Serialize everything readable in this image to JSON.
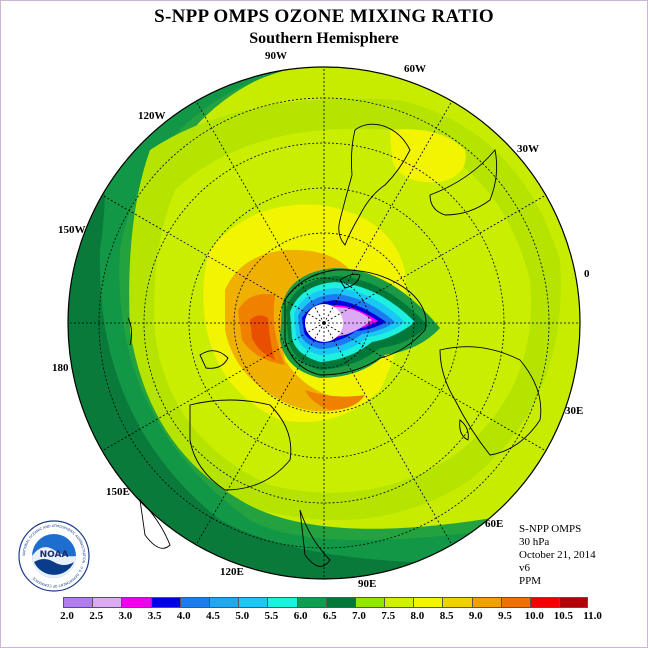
{
  "title": "S-NPP OMPS OZONE MIXING RATIO",
  "subtitle": "Southern Hemisphere",
  "longitude_labels": [
    "90W",
    "60W",
    "30W",
    "0",
    "30E",
    "60E",
    "90E",
    "120E",
    "150E",
    "180",
    "150W",
    "120W"
  ],
  "info": {
    "instrument": "S-NPP OMPS",
    "level": "30 hPa",
    "date": "October 21, 2014",
    "version": "v6",
    "units": "PPM"
  },
  "logo": {
    "text": "NOAA",
    "ring_text": "NATIONAL OCEANIC AND ATMOSPHERIC ADMINISTRATION · U.S. DEPARTMENT OF COMMERCE"
  },
  "legend": {
    "tick_labels": [
      "2.0",
      "2.5",
      "3.0",
      "3.5",
      "4.0",
      "4.5",
      "5.0",
      "5.5",
      "6.0",
      "6.5",
      "7.0",
      "7.5",
      "8.0",
      "8.5",
      "9.0",
      "9.5",
      "10.0",
      "10.5",
      "11.0"
    ],
    "colors": [
      "#b07cf0",
      "#dcaaf4",
      "#f000f0",
      "#0000e0",
      "#1a7cf0",
      "#1ea8f0",
      "#19c8f4",
      "#1ef0e0",
      "#0aa050",
      "#00783a",
      "#90e800",
      "#d0f000",
      "#f4f400",
      "#f0d000",
      "#f0a000",
      "#f07000",
      "#f00000",
      "#b40000"
    ]
  }
}
